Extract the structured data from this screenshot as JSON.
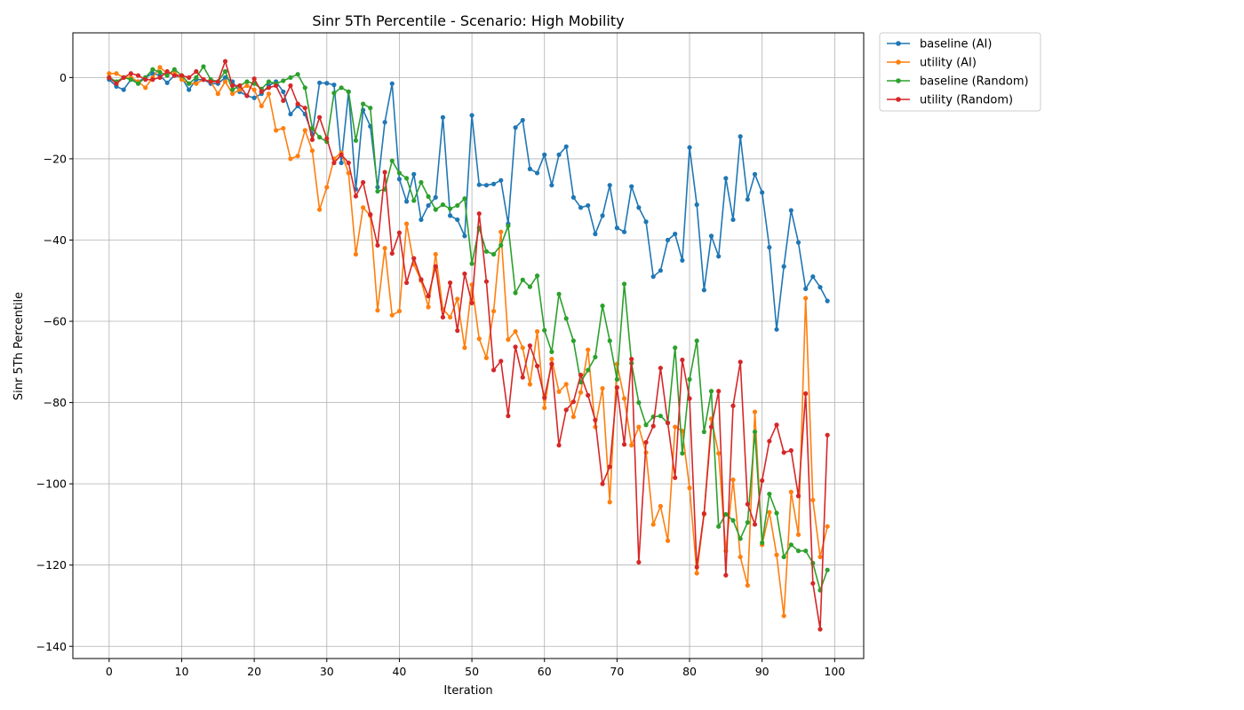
{
  "chart_data": {
    "type": "line",
    "title": "Sinr 5Th Percentile - Scenario: High Mobility",
    "xlabel": "Iteration",
    "ylabel": "Sinr 5Th Percentile",
    "xlim": [
      -5,
      104
    ],
    "ylim": [
      -143,
      11
    ],
    "xticks": [
      0,
      10,
      20,
      30,
      40,
      50,
      60,
      70,
      80,
      90,
      100
    ],
    "yticks": [
      0,
      -20,
      -40,
      -60,
      -80,
      -100,
      -120,
      -140
    ],
    "xtick_labels": [
      "0",
      "10",
      "20",
      "30",
      "40",
      "50",
      "60",
      "70",
      "80",
      "90",
      "100"
    ],
    "ytick_labels": [
      "0",
      "−20",
      "−40",
      "−60",
      "−80",
      "−100",
      "−120",
      "−140"
    ],
    "grid": true,
    "legend": "outside-top-right",
    "series": [
      {
        "name": "baseline (AI)",
        "color": "#1f77b4",
        "values": [
          -0.5,
          -2.2,
          -3,
          -0.5,
          -1,
          0,
          1,
          0.5,
          -1.3,
          0.5,
          0,
          -3,
          -0.5,
          -0.5,
          -1.5,
          -1.5,
          0,
          -1,
          -3.5,
          -4.5,
          -5,
          -4,
          -2,
          -1,
          -3.5,
          -9,
          -7,
          -9,
          -14,
          -1.3,
          -1.4,
          -1.8,
          -21,
          -3.5,
          -27.5,
          -8,
          -12,
          -27,
          -11,
          -1.5,
          -25,
          -30.5,
          -23.8,
          -35,
          -31.5,
          -29.5,
          -9.8,
          -34,
          -35,
          -39,
          -9.3,
          -26.4,
          -26.5,
          -26.2,
          -25.3,
          -36,
          -12.3,
          -10.5,
          -22.5,
          -23.5,
          -19,
          -26.5,
          -19,
          -17,
          -29.5,
          -32,
          -31.5,
          -38.5,
          -34,
          -26.5,
          -37,
          -38,
          -26.8,
          -32,
          -35.5,
          -49,
          -47.5,
          -40,
          -38.5,
          -45,
          -17.2,
          -31.3,
          -52.3,
          -39,
          -44,
          -24.8,
          -35,
          -14.5,
          -30,
          -23.8,
          -28.3,
          -41.8,
          -62,
          -46.5,
          -32.7,
          -40.6,
          -52,
          -49,
          -51.6,
          -55
        ]
      },
      {
        "name": "utility (AI)",
        "color": "#ff7f0e",
        "values": [
          1,
          1,
          0,
          0,
          -1,
          -2.5,
          0,
          2.5,
          1,
          1.5,
          -0.5,
          -1.5,
          -1.5,
          -0.5,
          -1,
          -4,
          -1,
          -4,
          -3,
          -2,
          -3,
          -7,
          -4,
          -13,
          -12.5,
          -20,
          -19.3,
          -13,
          -18,
          -32.5,
          -27,
          -20,
          -18.5,
          -23.5,
          -43.5,
          -32,
          -34,
          -57.3,
          -42,
          -58.5,
          -57.5,
          -36,
          -46,
          -50,
          -56.5,
          -43.5,
          -57,
          -59,
          -54.5,
          -66.5,
          -51,
          -64.3,
          -69,
          -57.5,
          -38,
          -64.5,
          -62.5,
          -66.5,
          -75.5,
          -62.5,
          -81.3,
          -69.3,
          -77.3,
          -75.5,
          -83.5,
          -77.5,
          -67,
          -86,
          -76.5,
          -104.5,
          -70.5,
          -79,
          -90.5,
          -86,
          -92.3,
          -110,
          -105.5,
          -114,
          -86,
          -87,
          -101,
          -122,
          -107.5,
          -84,
          -92.5,
          -116.5,
          -99,
          -118,
          -125,
          -82.3,
          -115,
          -107,
          -117.5,
          -132.5,
          -102,
          -112.5,
          -54.3,
          -104,
          -118,
          -110.5
        ]
      },
      {
        "name": "baseline (Random)",
        "color": "#2ca02c",
        "values": [
          0,
          -1,
          0,
          -0.5,
          -1.5,
          0,
          2,
          1.3,
          0.5,
          2,
          0.5,
          -1.5,
          0,
          2.7,
          -0.5,
          -1,
          1.5,
          -3,
          -2,
          -1,
          -1.5,
          -2.8,
          -1,
          -1.5,
          -0.8,
          0,
          0.8,
          -2.5,
          -12.5,
          -14.7,
          -15.8,
          -3.8,
          -2.5,
          -3.5,
          -15.5,
          -6.5,
          -7.5,
          -28,
          -27.5,
          -20.5,
          -23.5,
          -24.8,
          -30.3,
          -25.8,
          -29.3,
          -32.5,
          -31.3,
          -32.3,
          -31.5,
          -29.8,
          -45.8,
          -37,
          -42.8,
          -43.5,
          -41.3,
          -36.5,
          -53,
          -49.8,
          -51.5,
          -48.8,
          -62.2,
          -67.5,
          -53.3,
          -59.3,
          -64.8,
          -75,
          -72,
          -68.8,
          -56.2,
          -64.8,
          -74.3,
          -50.8,
          -70.3,
          -80,
          -85.5,
          -83.5,
          -83.3,
          -85,
          -66.5,
          -92.5,
          -74.3,
          -64.8,
          -87.2,
          -77.2,
          -110.5,
          -107.5,
          -109,
          -113.5,
          -109.5,
          -87.2,
          -114.5,
          -102.5,
          -107.2,
          -118,
          -115,
          -116.5,
          -116.5,
          -119.5,
          -126.2,
          -121.2
        ]
      },
      {
        "name": "utility (Random)",
        "color": "#d62728",
        "values": [
          0,
          -1.5,
          0,
          1,
          0.5,
          -0.5,
          -0.5,
          0,
          1.5,
          0.5,
          0.5,
          0,
          1.5,
          -0.5,
          -1,
          -1,
          4,
          -2,
          -2,
          -4.5,
          -0.3,
          -3.5,
          -2.5,
          -2,
          -5.7,
          -2,
          -6.5,
          -7.5,
          -15.3,
          -9.8,
          -15,
          -21,
          -19,
          -21,
          -29.2,
          -25.8,
          -33.7,
          -41.3,
          -23.3,
          -43.3,
          -38.2,
          -50.5,
          -44.5,
          -49.7,
          -53.8,
          -46.5,
          -59,
          -50.5,
          -62.3,
          -48.3,
          -55.5,
          -33.5,
          -50.2,
          -72,
          -69.8,
          -83.3,
          -66.3,
          -73.8,
          -66,
          -71,
          -78.8,
          -70.5,
          -90.5,
          -81.8,
          -79.8,
          -73.2,
          -78.2,
          -84.3,
          -100,
          -95.8,
          -76.3,
          -90.3,
          -69.3,
          -119.3,
          -89.8,
          -85.8,
          -71.5,
          -85,
          -98.5,
          -69.5,
          -79,
          -120.5,
          -107.3,
          -86,
          -77.2,
          -122.5,
          -80.8,
          -70,
          -105,
          -110,
          -99.2,
          -89.5,
          -85.5,
          -92.3,
          -91.8,
          -103,
          -77.8,
          -124.5,
          -135.8,
          -88
        ]
      }
    ]
  }
}
